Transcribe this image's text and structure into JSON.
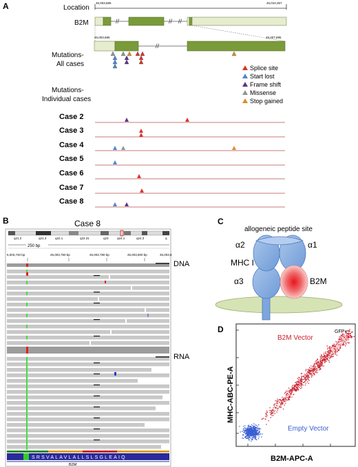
{
  "panel_a": {
    "letter": "A",
    "location_label": "Location",
    "coord_start": "45,003,685",
    "coord_end": "45,010,357",
    "gene_label": "B2M",
    "zoom_coord_start": "45,003,685",
    "zoom_coord_end": "45,007,895",
    "mutations_all_label_1": "Mutations-",
    "mutations_all_label_2": "All cases",
    "mutations_individual_label_1": "Mutations-",
    "mutations_individual_label_2": "Individual cases",
    "legend": [
      {
        "label": "Splice site",
        "color": "#d9342b"
      },
      {
        "label": "Start lost",
        "color": "#4e86d4"
      },
      {
        "label": "Frame shift",
        "color": "#5d3587"
      },
      {
        "label": "Missense",
        "color": "#8c9896"
      },
      {
        "label": "Stop gained",
        "color": "#e08a2e"
      }
    ],
    "cases": [
      {
        "label": "Case 2"
      },
      {
        "label": "Case 3"
      },
      {
        "label": "Case 4"
      },
      {
        "label": "Case 5"
      },
      {
        "label": "Case 6"
      },
      {
        "label": "Case 7"
      },
      {
        "label": "Case 8"
      }
    ]
  },
  "panel_b": {
    "letter": "B",
    "title": "Case 8",
    "bands": [
      "q21.2",
      "q21.3",
      "q22.1",
      "q22.31",
      "q23",
      "q24.1",
      "q24.3",
      "q"
    ],
    "scale_label": "250 bp",
    "ruler_ticks": [
      "5,003,740 bp",
      "45,003,760 bp",
      "45,003,780 bp",
      "45,003,800 bp",
      "45,003,8"
    ],
    "dna_label": "DNA",
    "rna_label": "RNA",
    "sequence": "SRSVALAVLALLSLSGLEAIQ",
    "gene_label": "B2M"
  },
  "panel_c": {
    "letter": "C",
    "site_label": "allogeneic peptide site",
    "alpha2": "α2",
    "alpha1": "α1",
    "mhc_label": "MHC I",
    "alpha3": "α3",
    "b2m_label": "B2M"
  },
  "panel_d": {
    "letter": "D",
    "y_label": "MHC-ABC-PE-A",
    "x_label": "B2M-APC-A",
    "b2m_vector_label": "B2M Vector",
    "empty_vector_label": "Empty Vector",
    "gfp_label": "GFP+",
    "colors": {
      "b2m": "#c8202c",
      "empty": "#3a5fd0"
    }
  }
}
